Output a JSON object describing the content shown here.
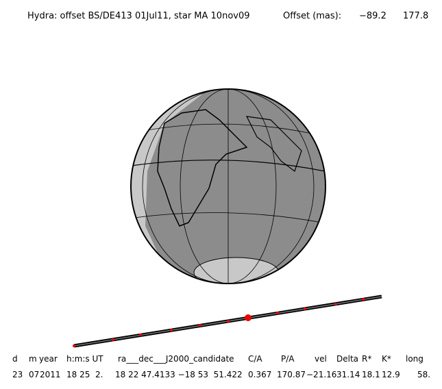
{
  "header": {
    "title": "Hydra: offset BS/DE413 01Jul11, star MA 10nov09",
    "offset_label": "Offset (mas):",
    "offset_x": "−89.2",
    "offset_y": "177.8"
  },
  "table": {
    "headers": [
      "d",
      "m",
      "year",
      "h:m:s UT",
      "ra___dec___J2000_candidate",
      "C/A",
      "P/A",
      "vel",
      "Delta",
      "R*",
      "K*",
      "long"
    ],
    "rows": [
      [
        "23",
        "07",
        "2011",
        "18 25  2.",
        "18 22 47.4133 −18 53  51.422",
        "0.367",
        "170.87",
        "−21.16",
        "31.14",
        "18.1",
        "12.9",
        "58."
      ]
    ]
  }
}
